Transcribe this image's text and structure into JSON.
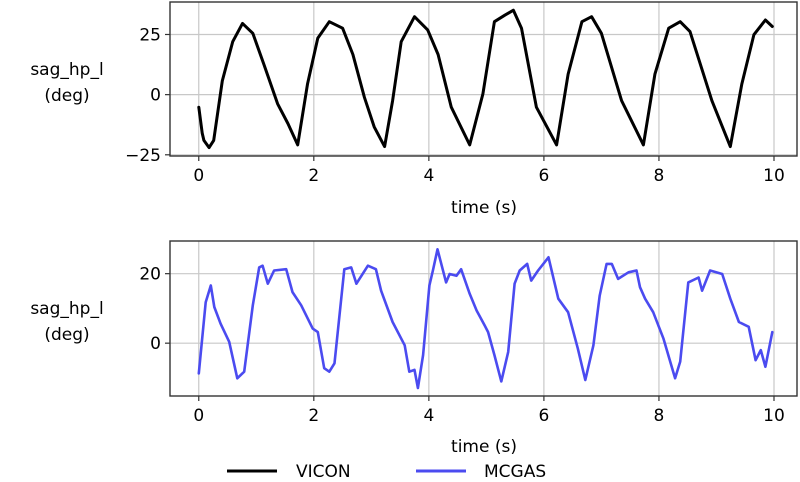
{
  "chart_data": [
    {
      "type": "line",
      "title": "",
      "xlabel": "time (s)",
      "ylabel": "sag_hp_l\n(deg)",
      "xlim": [
        -0.5,
        10.4
      ],
      "ylim": [
        -25.5,
        38.5
      ],
      "xticks": [
        0,
        2,
        4,
        6,
        8,
        10
      ],
      "yticks": [
        -25,
        0,
        25
      ],
      "ytick_labels": [
        "−25",
        "0",
        "25"
      ],
      "grid": true,
      "series": [
        {
          "name": "VICON",
          "color": "#000000",
          "x": [
            0,
            0.06,
            0.09,
            0.18,
            0.26,
            0.41,
            0.59,
            0.76,
            0.94,
            1.13,
            1.37,
            1.55,
            1.72,
            1.89,
            2.07,
            2.27,
            2.5,
            2.68,
            2.88,
            3.05,
            3.23,
            3.37,
            3.52,
            3.75,
            3.98,
            4.16,
            4.39,
            4.71,
            4.94,
            5.14,
            5.32,
            5.47,
            5.61,
            5.87,
            6.22,
            6.42,
            6.66,
            6.83,
            7.0,
            7.35,
            7.73,
            7.93,
            8.17,
            8.37,
            8.54,
            8.92,
            9.24,
            9.44,
            9.65,
            9.85,
            9.97
          ],
          "y": [
            -5.2,
            -16,
            -19,
            -22,
            -19,
            5.7,
            22,
            29.6,
            25.5,
            12.7,
            -3.8,
            -12,
            -20.9,
            4.4,
            23.5,
            30.3,
            27.6,
            16.7,
            -1.1,
            -13.4,
            -21.6,
            -2.5,
            22,
            32.4,
            26.9,
            16.7,
            -5.2,
            -20.9,
            0.3,
            30.3,
            33,
            35.1,
            27.6,
            -5.2,
            -20.9,
            8.5,
            30.3,
            32.4,
            25.5,
            -2.5,
            -20.9,
            8.5,
            27.6,
            30.3,
            26.2,
            -2.5,
            -21.6,
            4.4,
            24.9,
            31,
            28.3
          ]
        }
      ]
    },
    {
      "type": "line",
      "title": "",
      "xlabel": "time (s)",
      "ylabel": "sag_hp_l\n(deg)",
      "xlim": [
        -0.5,
        10.4
      ],
      "ylim": [
        -15.2,
        29.4
      ],
      "xticks": [
        0,
        2,
        4,
        6,
        8,
        10
      ],
      "yticks": [
        0,
        20
      ],
      "ytick_labels": [
        "0",
        "20"
      ],
      "grid": true,
      "series": [
        {
          "name": "MCGAS",
          "color": "#4b4bf0",
          "x": [
            0,
            0.12,
            0.21,
            0.27,
            0.38,
            0.53,
            0.67,
            0.79,
            0.94,
            1.05,
            1.11,
            1.2,
            1.31,
            1.52,
            1.63,
            1.78,
            1.98,
            2.07,
            2.18,
            2.27,
            2.36,
            2.53,
            2.65,
            2.74,
            2.94,
            3.08,
            3.17,
            3.37,
            3.58,
            3.66,
            3.75,
            3.81,
            3.9,
            4.01,
            4.07,
            4.15,
            4.3,
            4.36,
            4.48,
            4.56,
            4.71,
            4.83,
            4.97,
            5.03,
            5.14,
            5.26,
            5.38,
            5.49,
            5.58,
            5.71,
            5.78,
            5.9,
            5.99,
            6.08,
            6.25,
            6.42,
            6.59,
            6.72,
            6.86,
            6.97,
            7.09,
            7.18,
            7.29,
            7.47,
            7.61,
            7.67,
            7.76,
            7.9,
            8.08,
            8.28,
            8.37,
            8.51,
            8.69,
            8.75,
            8.89,
            9.1,
            9.24,
            9.39,
            9.56,
            9.68,
            9.77,
            9.85,
            9.97
          ],
          "y": [
            -8.7,
            11.8,
            16.6,
            10.4,
            5.6,
            0.4,
            -10.1,
            -8.2,
            10.9,
            21.8,
            22.3,
            17.1,
            20.9,
            21.3,
            14.7,
            10.9,
            4.2,
            3.2,
            -7.2,
            -8.2,
            -5.8,
            21.3,
            21.8,
            17.1,
            22.3,
            21.3,
            15.1,
            6.1,
            -0.6,
            -8.2,
            -7.7,
            -12.9,
            -3.4,
            16.6,
            20.9,
            27,
            17.5,
            19.9,
            19.4,
            21.3,
            14.2,
            9.4,
            5.1,
            3.2,
            -3.4,
            -11,
            -2.5,
            17.1,
            20.9,
            22.8,
            18,
            20.9,
            22.8,
            24.7,
            12.8,
            8.9,
            -1.5,
            -10.6,
            -0.6,
            13.7,
            22.8,
            22.8,
            18.5,
            20.4,
            20.9,
            16.1,
            12.8,
            8.9,
            1.3,
            -10.1,
            -5.3,
            17.5,
            18.9,
            15.1,
            20.9,
            19.9,
            12.8,
            6.1,
            4.7,
            -4.9,
            -2,
            -6.8,
            3.2
          ]
        }
      ]
    }
  ],
  "plots": {
    "top": {
      "ylabel_line1": "sag_hp_l",
      "ylabel_line2": "(deg)",
      "xlabel": "time (s)"
    },
    "bottom": {
      "ylabel_line1": "sag_hp_l",
      "ylabel_line2": "(deg)",
      "xlabel": "time (s)"
    }
  },
  "legend": {
    "items": [
      {
        "label": "VICON",
        "color": "#000000"
      },
      {
        "label": "MCGAS",
        "color": "#4b4bf0"
      }
    ]
  }
}
